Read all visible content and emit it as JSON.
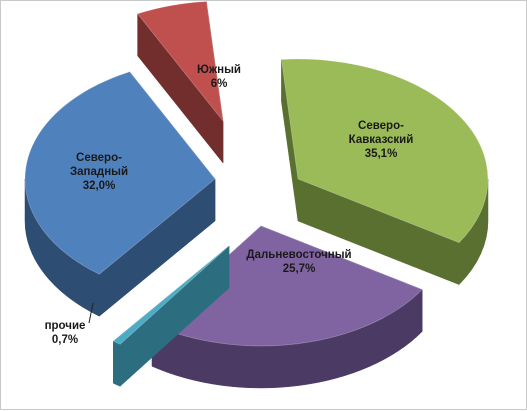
{
  "chart_data": {
    "type": "pie",
    "title": "",
    "categories": [
      "Северо-Кавказский",
      "Дальневосточный",
      "прочие",
      "Северо-Западный",
      "Южный"
    ],
    "values": [
      35.1,
      25.7,
      0.7,
      32.0,
      6
    ],
    "label_lines": [
      [
        "Северо-",
        "Кавказский",
        "35,1%"
      ],
      [
        "Дальневосточный",
        "25,7%"
      ],
      [
        "прочие",
        "0,7%"
      ],
      [
        "Северо-",
        "Западный",
        "32,0%"
      ],
      [
        "Южный",
        "6%"
      ]
    ],
    "colors_top": [
      "#9bbb59",
      "#8064a2",
      "#4bacc6",
      "#4f81bd",
      "#c0504d"
    ],
    "colors_side": [
      "#5a7030",
      "#4b3a63",
      "#2c6e80",
      "#2e4d73",
      "#722e2c"
    ],
    "style": "3d-exploded",
    "legend": "none"
  }
}
